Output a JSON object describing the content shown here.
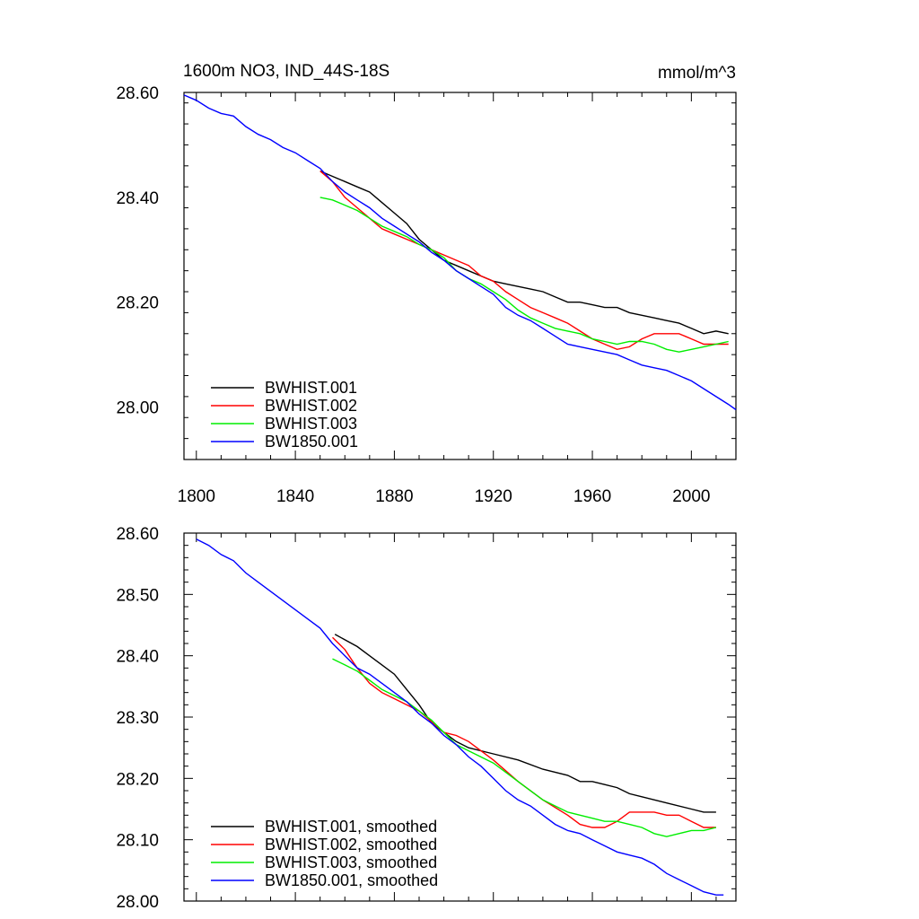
{
  "header": {
    "title": "1600m NO3, IND_44S-18S",
    "units": "mmol/m^3"
  },
  "colors": {
    "black": "#000000",
    "red": "#ff0000",
    "green": "#00ee00",
    "blue": "#0000ff"
  },
  "chart_data": [
    {
      "type": "line",
      "title": "1600m NO3, IND_44S-18S",
      "units": "mmol/m^3",
      "xlim": [
        1795,
        2018
      ],
      "ylim": [
        27.9,
        28.6
      ],
      "xticks": [
        1800,
        1840,
        1880,
        1920,
        1960,
        2000
      ],
      "xtick_labels": [
        "1800",
        "1840",
        "1880",
        "1920",
        "1960",
        "2000"
      ],
      "yticks": [
        28.0,
        28.2,
        28.4,
        28.6
      ],
      "ytick_labels": [
        "28.00",
        "28.20",
        "28.40",
        "28.60"
      ],
      "legend_position": "bottom-left",
      "series": [
        {
          "name": "BWHIST.001",
          "color": "#000000",
          "x": [
            1850,
            1855,
            1860,
            1865,
            1870,
            1875,
            1880,
            1885,
            1890,
            1895,
            1900,
            1905,
            1910,
            1915,
            1920,
            1925,
            1930,
            1935,
            1940,
            1945,
            1950,
            1955,
            1960,
            1965,
            1970,
            1975,
            1980,
            1985,
            1990,
            1995,
            2000,
            2005,
            2010,
            2015
          ],
          "y": [
            28.45,
            28.44,
            28.43,
            28.42,
            28.41,
            28.39,
            28.37,
            28.35,
            28.32,
            28.3,
            28.28,
            28.27,
            28.26,
            28.25,
            28.24,
            28.235,
            28.23,
            28.225,
            28.22,
            28.21,
            28.2,
            28.2,
            28.195,
            28.19,
            28.19,
            28.18,
            28.175,
            28.17,
            28.165,
            28.16,
            28.15,
            28.14,
            28.145,
            28.14
          ]
        },
        {
          "name": "BWHIST.002",
          "color": "#ff0000",
          "x": [
            1850,
            1855,
            1860,
            1865,
            1870,
            1875,
            1880,
            1885,
            1890,
            1895,
            1900,
            1905,
            1910,
            1915,
            1920,
            1925,
            1930,
            1935,
            1940,
            1945,
            1950,
            1955,
            1960,
            1965,
            1970,
            1975,
            1980,
            1985,
            1990,
            1995,
            2000,
            2005,
            2010,
            2015
          ],
          "y": [
            28.45,
            28.43,
            28.4,
            28.38,
            28.36,
            28.34,
            28.33,
            28.32,
            28.31,
            28.3,
            28.29,
            28.28,
            28.27,
            28.25,
            28.24,
            28.22,
            28.205,
            28.19,
            28.18,
            28.17,
            28.16,
            28.145,
            28.13,
            28.12,
            28.11,
            28.115,
            28.13,
            28.14,
            28.14,
            28.14,
            28.13,
            28.12,
            28.12,
            28.12
          ]
        },
        {
          "name": "BWHIST.003",
          "color": "#00ee00",
          "x": [
            1850,
            1855,
            1860,
            1865,
            1870,
            1875,
            1880,
            1885,
            1890,
            1895,
            1900,
            1905,
            1910,
            1915,
            1920,
            1925,
            1930,
            1935,
            1940,
            1945,
            1950,
            1955,
            1960,
            1965,
            1970,
            1975,
            1980,
            1985,
            1990,
            1995,
            2000,
            2005,
            2010,
            2015
          ],
          "y": [
            28.4,
            28.395,
            28.385,
            28.375,
            28.36,
            28.345,
            28.335,
            28.325,
            28.31,
            28.3,
            28.285,
            28.26,
            28.245,
            28.235,
            28.22,
            28.205,
            28.185,
            28.17,
            28.16,
            28.15,
            28.145,
            28.14,
            28.13,
            28.125,
            28.12,
            28.125,
            28.125,
            28.12,
            28.11,
            28.105,
            28.11,
            28.115,
            28.12,
            28.125
          ]
        },
        {
          "name": "BW1850.001",
          "color": "#0000ff",
          "x": [
            1795,
            1800,
            1805,
            1810,
            1815,
            1820,
            1825,
            1830,
            1835,
            1840,
            1845,
            1850,
            1855,
            1860,
            1865,
            1870,
            1875,
            1880,
            1885,
            1890,
            1895,
            1900,
            1905,
            1910,
            1915,
            1920,
            1925,
            1930,
            1935,
            1940,
            1945,
            1950,
            1955,
            1960,
            1965,
            1970,
            1975,
            1980,
            1985,
            1990,
            1995,
            2000,
            2005,
            2010,
            2015,
            2018
          ],
          "y": [
            28.595,
            28.585,
            28.57,
            28.56,
            28.555,
            28.535,
            28.52,
            28.51,
            28.495,
            28.485,
            28.47,
            28.455,
            28.43,
            28.41,
            28.395,
            28.38,
            28.36,
            28.345,
            28.33,
            28.315,
            28.295,
            28.28,
            28.26,
            28.245,
            28.23,
            28.215,
            28.19,
            28.175,
            28.165,
            28.15,
            28.135,
            28.12,
            28.115,
            28.11,
            28.105,
            28.1,
            28.09,
            28.08,
            28.075,
            28.07,
            28.06,
            28.05,
            28.035,
            28.02,
            28.005,
            27.995
          ]
        }
      ]
    },
    {
      "type": "line",
      "xlim": [
        1795,
        2018
      ],
      "ylim": [
        28.0,
        28.6
      ],
      "yticks": [
        28.0,
        28.1,
        28.2,
        28.3,
        28.4,
        28.5,
        28.6
      ],
      "ytick_labels": [
        "28.00",
        "28.10",
        "28.20",
        "28.30",
        "28.40",
        "28.50",
        "28.60"
      ],
      "legend_position": "bottom-left",
      "series": [
        {
          "name": "BWHIST.001, smoothed",
          "color": "#000000",
          "x": [
            1856,
            1865,
            1870,
            1875,
            1880,
            1885,
            1890,
            1895,
            1900,
            1905,
            1910,
            1920,
            1930,
            1940,
            1950,
            1955,
            1960,
            1965,
            1970,
            1975,
            1980,
            1990,
            2000,
            2005,
            2010
          ],
          "y": [
            28.435,
            28.415,
            28.4,
            28.385,
            28.37,
            28.345,
            28.32,
            28.29,
            28.275,
            28.26,
            28.25,
            28.24,
            28.23,
            28.215,
            28.205,
            28.195,
            28.195,
            28.19,
            28.185,
            28.175,
            28.17,
            28.16,
            28.15,
            28.145,
            28.145
          ]
        },
        {
          "name": "BWHIST.002, smoothed",
          "color": "#ff0000",
          "x": [
            1855,
            1860,
            1865,
            1870,
            1875,
            1880,
            1890,
            1900,
            1905,
            1910,
            1915,
            1920,
            1930,
            1940,
            1950,
            1955,
            1960,
            1965,
            1970,
            1975,
            1980,
            1985,
            1990,
            1995,
            2000,
            2005,
            2010
          ],
          "y": [
            28.43,
            28.41,
            28.38,
            28.355,
            28.34,
            28.33,
            28.31,
            28.275,
            28.27,
            28.26,
            28.245,
            28.23,
            28.195,
            28.165,
            28.14,
            28.125,
            28.12,
            28.12,
            28.13,
            28.145,
            28.145,
            28.145,
            28.14,
            28.14,
            28.13,
            28.12,
            28.12
          ]
        },
        {
          "name": "BWHIST.003, smoothed",
          "color": "#00ee00",
          "x": [
            1855,
            1860,
            1865,
            1870,
            1875,
            1880,
            1885,
            1890,
            1895,
            1900,
            1905,
            1910,
            1920,
            1930,
            1940,
            1945,
            1950,
            1955,
            1960,
            1965,
            1970,
            1975,
            1980,
            1985,
            1990,
            1995,
            2000,
            2005,
            2010
          ],
          "y": [
            28.395,
            28.385,
            28.375,
            28.36,
            28.345,
            28.335,
            28.325,
            28.31,
            28.295,
            28.275,
            28.255,
            28.245,
            28.225,
            28.195,
            28.165,
            28.155,
            28.145,
            28.14,
            28.135,
            28.13,
            28.13,
            28.125,
            28.12,
            28.11,
            28.105,
            28.11,
            28.115,
            28.115,
            28.12
          ]
        },
        {
          "name": "BW1850.001, smoothed",
          "color": "#0000ff",
          "x": [
            1800,
            1805,
            1810,
            1815,
            1820,
            1825,
            1830,
            1835,
            1840,
            1845,
            1850,
            1855,
            1860,
            1865,
            1870,
            1875,
            1880,
            1885,
            1890,
            1895,
            1900,
            1905,
            1910,
            1915,
            1920,
            1925,
            1930,
            1935,
            1940,
            1945,
            1950,
            1955,
            1960,
            1965,
            1970,
            1975,
            1980,
            1985,
            1990,
            1995,
            2000,
            2005,
            2010,
            2013
          ],
          "y": [
            28.59,
            28.58,
            28.565,
            28.555,
            28.535,
            28.52,
            28.505,
            28.49,
            28.475,
            28.46,
            28.445,
            28.42,
            28.4,
            28.38,
            28.37,
            28.355,
            28.34,
            28.325,
            28.305,
            28.29,
            28.27,
            28.255,
            28.235,
            28.22,
            28.2,
            28.18,
            28.165,
            28.155,
            28.14,
            28.125,
            28.115,
            28.11,
            28.1,
            28.09,
            28.08,
            28.075,
            28.07,
            28.06,
            28.045,
            28.035,
            28.025,
            28.015,
            28.01,
            28.01
          ]
        }
      ]
    }
  ]
}
